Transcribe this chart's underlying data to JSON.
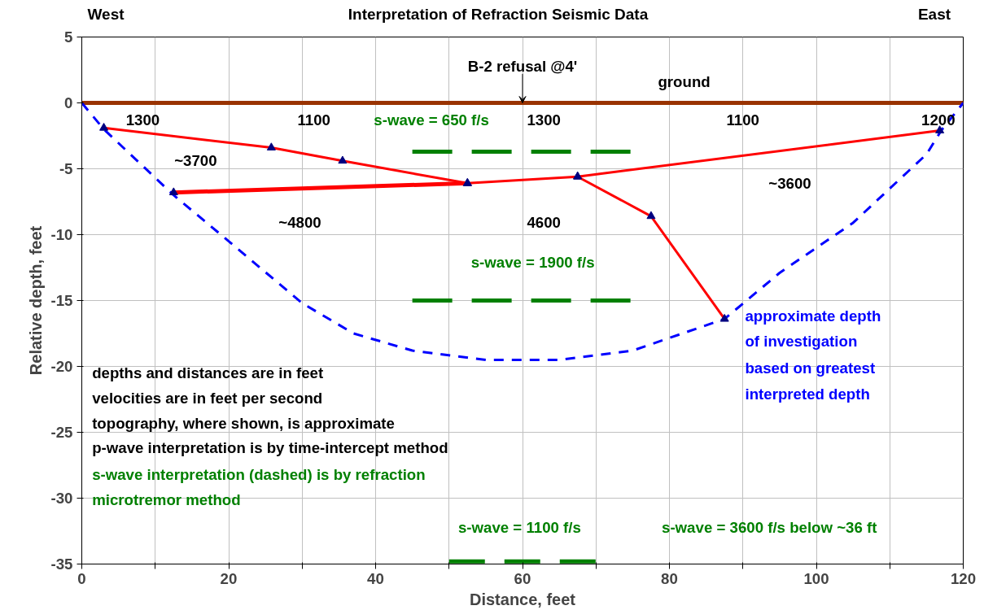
{
  "chart_data": {
    "type": "line",
    "title": "Interpretation of Refraction Seismic Data",
    "xlabel": "Distance, feet",
    "ylabel": "Relative depth, feet",
    "xlim": [
      0,
      120
    ],
    "ylim": [
      -35,
      5
    ],
    "xticks": [
      0,
      {
        "value": 10,
        "label": null
      },
      20,
      {
        "value": 30,
        "label": null
      },
      40,
      {
        "value": 50,
        "label": null
      },
      60,
      {
        "value": 70,
        "label": null
      },
      80,
      {
        "value": 90,
        "label": null
      },
      100,
      {
        "value": 110,
        "label": null
      },
      120
    ],
    "yticks": [
      -35,
      -30,
      -25,
      -20,
      -15,
      -10,
      -5,
      0,
      5
    ],
    "grid": true,
    "series": [
      {
        "color": "#993300",
        "marker": "none",
        "line_style": "solid",
        "x": [
          0,
          120
        ],
        "values": [
          0,
          0
        ]
      },
      {
        "color": "#0000ff",
        "marker": "none",
        "line_style": "dashed",
        "x": [
          0,
          3,
          12.5,
          20,
          30,
          37,
          45,
          55,
          65,
          75,
          87.5,
          95,
          105,
          110,
          115,
          117,
          120
        ],
        "values": [
          0,
          -2,
          -7,
          -10.5,
          -15.2,
          -17.5,
          -18.8,
          -19.5,
          -19.5,
          -18.8,
          -16.4,
          -12.9,
          -9.1,
          -6.5,
          -3.9,
          -2.1,
          0
        ]
      },
      {
        "color": "#ff0000",
        "marker": "triangle",
        "line_style": "solid",
        "x": [
          3,
          25.8,
          35.5,
          52.5,
          67.5,
          116.8
        ],
        "values": [
          -1.9,
          -3.4,
          -4.4,
          -6.1,
          -5.6,
          -2.1
        ]
      },
      {
        "color": "#ff0000",
        "marker": "triangle",
        "line_style": "solid",
        "x": [
          12.5,
          52.5
        ],
        "values": [
          -6.8,
          -6.1
        ]
      },
      {
        "color": "#ff0000",
        "marker": "triangle",
        "line_style": "solid",
        "x": [
          67.5,
          77.5,
          87.5
        ],
        "values": [
          -5.6,
          -8.6,
          -16.4
        ]
      },
      {
        "color": "#008000",
        "marker": "none",
        "line_style": "dashed",
        "x": [
          45,
          75
        ],
        "values": [
          -3.7,
          -3.7
        ]
      },
      {
        "color": "#008000",
        "marker": "none",
        "line_style": "dashed",
        "x": [
          45,
          75
        ],
        "values": [
          -15,
          -15
        ]
      },
      {
        "color": "#008000",
        "marker": "none",
        "line_style": "dashed",
        "x": [
          50,
          70
        ],
        "values": [
          -34.8,
          -34.8
        ]
      }
    ],
    "annotations": [
      "West",
      "East",
      {
        "text": "B-2 refusal @4'",
        "x": 60,
        "y": 0
      },
      "ground",
      "1300",
      "1100",
      "s-wave = 650 f/s",
      "1300",
      "1100",
      "1200",
      "~3700",
      "~4800",
      "4600",
      "~3600",
      "s-wave = 1900 f/s",
      "approximate depth",
      "of investigation",
      "based on greatest",
      "interpreted depth",
      "depths and distances are in feet",
      "velocities are in feet per second",
      "topography, where shown, is approximate",
      "p-wave interpretation is by time-intercept method",
      "s-wave interpretation (dashed) is by refraction",
      "microtremor method",
      "s-wave = 1100 f/s",
      "s-wave = 3600 f/s below ~36 ft"
    ]
  }
}
